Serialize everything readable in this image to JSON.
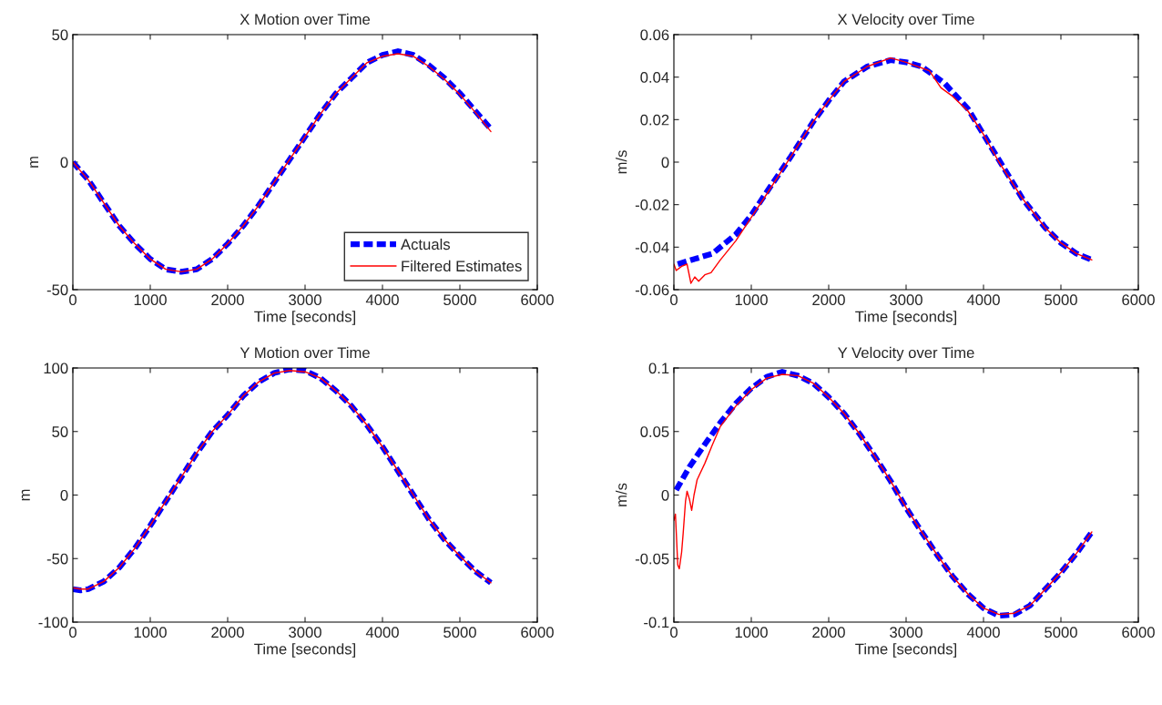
{
  "chart_data": [
    {
      "type": "line",
      "title": "X Motion over Time",
      "xlabel": "Time [seconds]",
      "ylabel": "m",
      "xlim": [
        0,
        6000
      ],
      "xticks": [
        0,
        1000,
        2000,
        3000,
        4000,
        5000,
        6000
      ],
      "ylim": [
        -50,
        50
      ],
      "yticks": [
        -50,
        0,
        50
      ],
      "legend": "bottom right",
      "grid": false,
      "series": [
        {
          "name": "Actuals",
          "color": "#0000ff",
          "line_style": "dashed",
          "x": [
            0,
            200,
            400,
            600,
            800,
            1000,
            1200,
            1400,
            1600,
            1800,
            2000,
            2200,
            2400,
            2600,
            2800,
            3000,
            3200,
            3400,
            3600,
            3800,
            4000,
            4200,
            4400,
            4600,
            4800,
            5000,
            5200,
            5400
          ],
          "values": [
            0,
            -7,
            -16,
            -25,
            -32,
            -38,
            -42,
            -43,
            -42,
            -38,
            -32,
            -25,
            -17,
            -8,
            1,
            10,
            19,
            27,
            33,
            39,
            42,
            43.5,
            42,
            38,
            33,
            27,
            20,
            13
          ]
        },
        {
          "name": "Filtered Estimates",
          "color": "#ff0000",
          "line_style": "solid",
          "x": [
            0,
            200,
            400,
            600,
            800,
            1000,
            1200,
            1400,
            1600,
            1800,
            2000,
            2200,
            2400,
            2600,
            2800,
            3000,
            3200,
            3400,
            3600,
            3800,
            4000,
            4200,
            4400,
            4600,
            4800,
            5000,
            5200,
            5400
          ],
          "values": [
            0,
            -7,
            -16,
            -25,
            -32,
            -38,
            -42,
            -43,
            -42,
            -38,
            -32,
            -25,
            -17,
            -8,
            1,
            10,
            19,
            27,
            33,
            39,
            41.5,
            42.5,
            41.5,
            37.5,
            32.5,
            26.5,
            19.5,
            12
          ]
        }
      ]
    },
    {
      "type": "line",
      "title": "X Velocity over Time",
      "xlabel": "Time [seconds]",
      "ylabel": "m/s",
      "xlim": [
        0,
        6000
      ],
      "xticks": [
        0,
        1000,
        2000,
        3000,
        4000,
        5000,
        6000
      ],
      "ylim": [
        -0.06,
        0.06
      ],
      "yticks": [
        -0.06,
        -0.04,
        -0.02,
        0,
        0.02,
        0.04,
        0.06
      ],
      "grid": false,
      "series": [
        {
          "color": "#0000ff",
          "line_style": "dashed",
          "x": [
            50,
            500,
            800,
            1000,
            1200,
            1500,
            1800,
            2000,
            2200,
            2500,
            2800,
            3000,
            3200,
            3500,
            3800,
            4000,
            4200,
            4500,
            4800,
            5000,
            5200,
            5400
          ],
          "values": [
            -0.048,
            -0.043,
            -0.034,
            -0.025,
            -0.014,
            0.002,
            0.019,
            0.029,
            0.038,
            0.045,
            0.048,
            0.047,
            0.045,
            0.037,
            0.025,
            0.013,
            0.001,
            -0.017,
            -0.031,
            -0.038,
            -0.043,
            -0.046
          ]
        },
        {
          "color": "#ff0000",
          "line_style": "solid",
          "x": [
            0,
            30,
            100,
            170,
            220,
            270,
            320,
            400,
            480,
            600,
            800,
            1000,
            1200,
            1500,
            1800,
            2000,
            2200,
            2500,
            2800,
            3000,
            3300,
            3450,
            3600,
            3800,
            4000,
            4200,
            4500,
            4800,
            5000,
            5200,
            5400
          ],
          "values": [
            -0.048,
            -0.051,
            -0.049,
            -0.048,
            -0.057,
            -0.054,
            -0.056,
            -0.053,
            -0.052,
            -0.046,
            -0.037,
            -0.026,
            -0.015,
            0.002,
            0.019,
            0.029,
            0.038,
            0.045,
            0.049,
            0.047,
            0.043,
            0.035,
            0.031,
            0.024,
            0.013,
            0.0,
            -0.017,
            -0.031,
            -0.038,
            -0.043,
            -0.046
          ]
        }
      ]
    },
    {
      "type": "line",
      "title": "Y Motion over Time",
      "xlabel": "Time [seconds]",
      "ylabel": "m",
      "xlim": [
        0,
        6000
      ],
      "xticks": [
        0,
        1000,
        2000,
        3000,
        4000,
        5000,
        6000
      ],
      "ylim": [
        -100,
        100
      ],
      "yticks": [
        -100,
        -50,
        0,
        50,
        100
      ],
      "grid": false,
      "series": [
        {
          "color": "#0000ff",
          "line_style": "dashed",
          "x": [
            0,
            100,
            200,
            400,
            600,
            800,
            1000,
            1200,
            1400,
            1600,
            1800,
            2000,
            2200,
            2400,
            2600,
            2800,
            3000,
            3200,
            3400,
            3600,
            3800,
            4000,
            4200,
            4400,
            4600,
            4800,
            5000,
            5200,
            5400
          ],
          "values": [
            -74,
            -75,
            -74,
            -68,
            -57,
            -42,
            -24,
            -5,
            14,
            33,
            50,
            63,
            78,
            89,
            96,
            99,
            98,
            92,
            82,
            70,
            55,
            38,
            19,
            0,
            -19,
            -35,
            -48,
            -60,
            -69
          ]
        },
        {
          "color": "#ff0000",
          "line_style": "solid",
          "x": [
            0,
            100,
            200,
            400,
            600,
            800,
            1000,
            1200,
            1400,
            1600,
            1800,
            2000,
            2200,
            2400,
            2600,
            2800,
            3000,
            3200,
            3400,
            3600,
            3800,
            4000,
            4200,
            4400,
            4600,
            4800,
            5000,
            5200,
            5400
          ],
          "values": [
            -73,
            -74,
            -74,
            -68,
            -57,
            -42,
            -24,
            -5,
            14,
            33,
            50,
            63,
            78,
            89,
            96,
            98,
            97,
            92,
            82,
            70,
            55,
            38,
            19,
            0,
            -19,
            -35,
            -48,
            -60,
            -69
          ]
        }
      ]
    },
    {
      "type": "line",
      "title": "Y Velocity over Time",
      "xlabel": "Time [seconds]",
      "ylabel": "m/s",
      "xlim": [
        0,
        6000
      ],
      "xticks": [
        0,
        1000,
        2000,
        3000,
        4000,
        5000,
        6000
      ],
      "ylim": [
        -0.1,
        0.1
      ],
      "yticks": [
        -0.1,
        -0.05,
        0,
        0.05,
        0.1
      ],
      "grid": false,
      "series": [
        {
          "color": "#0000ff",
          "line_style": "dashed",
          "x": [
            30,
            200,
            400,
            600,
            800,
            1000,
            1200,
            1400,
            1600,
            1800,
            2000,
            2200,
            2400,
            2600,
            2800,
            3000,
            3200,
            3400,
            3600,
            3800,
            4000,
            4200,
            4400,
            4600,
            4800,
            5000,
            5200,
            5400
          ],
          "values": [
            0.004,
            0.022,
            0.04,
            0.057,
            0.072,
            0.084,
            0.093,
            0.097,
            0.094,
            0.088,
            0.077,
            0.064,
            0.048,
            0.03,
            0.011,
            -0.01,
            -0.029,
            -0.047,
            -0.064,
            -0.078,
            -0.089,
            -0.095,
            -0.094,
            -0.087,
            -0.074,
            -0.061,
            -0.046,
            -0.029
          ]
        },
        {
          "color": "#ff0000",
          "line_style": "solid",
          "x": [
            0,
            20,
            50,
            70,
            100,
            120,
            150,
            170,
            200,
            230,
            260,
            300,
            400,
            500,
            600,
            800,
            1000,
            1200,
            1400,
            1600,
            1800,
            2000,
            2200,
            2400,
            2600,
            2800,
            3000,
            3200,
            3400,
            3600,
            3800,
            4000,
            4200,
            4400,
            4600,
            4800,
            5000,
            5200,
            5400
          ],
          "values": [
            -0.02,
            -0.015,
            -0.055,
            -0.058,
            -0.045,
            -0.03,
            -0.005,
            0.003,
            -0.003,
            -0.012,
            0.0,
            0.012,
            0.025,
            0.04,
            0.054,
            0.07,
            0.083,
            0.092,
            0.095,
            0.094,
            0.088,
            0.077,
            0.064,
            0.048,
            0.03,
            0.011,
            -0.01,
            -0.029,
            -0.047,
            -0.064,
            -0.078,
            -0.089,
            -0.094,
            -0.093,
            -0.087,
            -0.074,
            -0.061,
            -0.046,
            -0.029
          ]
        }
      ]
    }
  ]
}
